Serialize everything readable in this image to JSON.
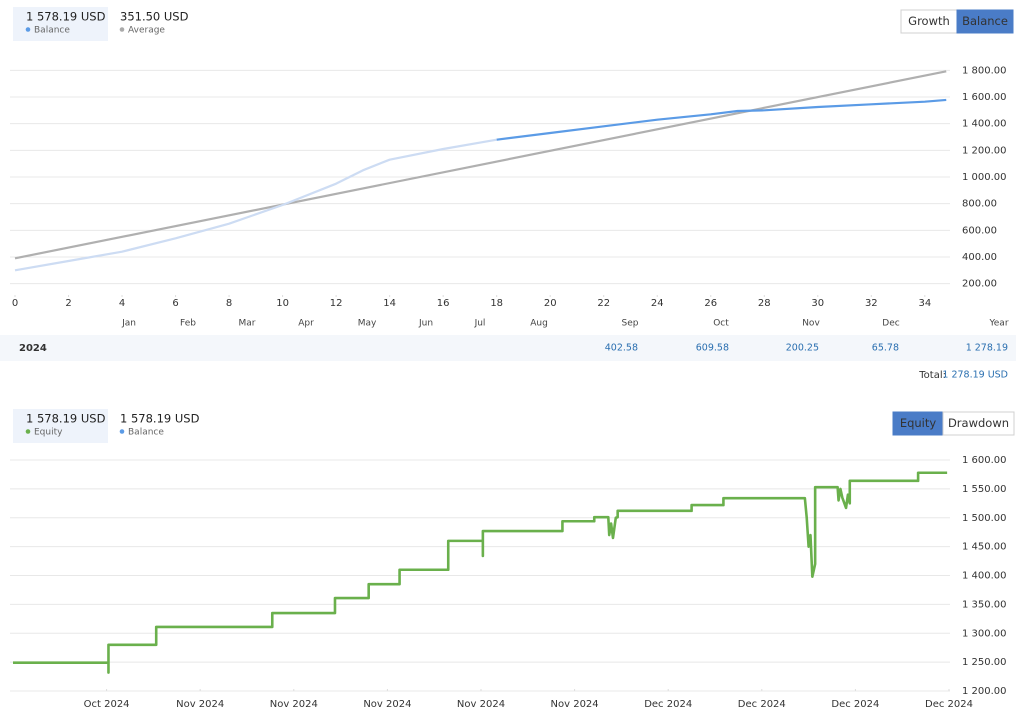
{
  "panels": [
    {
      "stats": [
        {
          "value": "1 578.19 USD",
          "label": "Balance",
          "color": "#5b9be6"
        },
        {
          "value": "351.50 USD",
          "label": "Average",
          "color": "#aaaaaa"
        }
      ],
      "tabs": [
        {
          "label": "Growth",
          "active": false
        },
        {
          "label": "Balance",
          "active": true
        }
      ]
    },
    {
      "stats": [
        {
          "value": "1 578.19 USD",
          "label": "Equity",
          "color": "#6ab04c"
        },
        {
          "value": "1 578.19 USD",
          "label": "Balance",
          "color": "#5b9be6"
        }
      ],
      "tabs": [
        {
          "label": "Equity",
          "active": true
        },
        {
          "label": "Drawdown",
          "active": false
        }
      ]
    }
  ],
  "chart_data": [
    {
      "type": "line",
      "xlim": [
        0,
        35
      ],
      "xticks": [
        0,
        2,
        4,
        6,
        8,
        10,
        12,
        14,
        16,
        18,
        20,
        22,
        24,
        26,
        28,
        30,
        32,
        34
      ],
      "ylim": [
        100,
        1900
      ],
      "yticks": [
        {
          "value": 200,
          "label": "200.00"
        },
        {
          "value": 400,
          "label": "400.00"
        },
        {
          "value": 600,
          "label": "600.00"
        },
        {
          "value": 800,
          "label": "800.00"
        },
        {
          "value": 1000,
          "label": "1 000.00"
        },
        {
          "value": 1200,
          "label": "1 200.00"
        },
        {
          "value": 1400,
          "label": "1 400.00"
        },
        {
          "value": 1600,
          "label": "1 600.00"
        },
        {
          "value": 1800,
          "label": "1 800.00"
        }
      ],
      "grid": true,
      "series": [
        {
          "name": "Average",
          "color": "#b0b0b0",
          "x": [
            0,
            34.8
          ],
          "values": [
            390,
            1793
          ]
        },
        {
          "name": "Balance",
          "color": "#5b9be6",
          "history_color": "#cddcf3",
          "history_until": 18,
          "x": [
            0,
            2,
            4,
            6,
            8,
            10,
            12,
            13,
            14,
            16,
            18,
            20,
            22,
            24,
            26,
            27,
            28,
            30,
            32,
            34,
            34.8
          ],
          "values": [
            300,
            370,
            440,
            540,
            650,
            790,
            950,
            1050,
            1130,
            1210,
            1280,
            1330,
            1380,
            1430,
            1470,
            1495,
            1500,
            1525,
            1545,
            1565,
            1578.19
          ]
        }
      ]
    },
    {
      "type": "line",
      "xlim": [
        0,
        100
      ],
      "xticks": [
        {
          "value": 10,
          "label": "Oct 2024"
        },
        {
          "value": 20,
          "label": "Nov 2024"
        },
        {
          "value": 30,
          "label": "Nov 2024"
        },
        {
          "value": 40,
          "label": "Nov 2024"
        },
        {
          "value": 50,
          "label": "Nov 2024"
        },
        {
          "value": 60,
          "label": "Nov 2024"
        },
        {
          "value": 70,
          "label": "Dec 2024"
        },
        {
          "value": 80,
          "label": "Dec 2024"
        },
        {
          "value": 90,
          "label": "Dec 2024"
        },
        {
          "value": 100,
          "label": "Dec 2024"
        }
      ],
      "ylim": [
        1200,
        1625
      ],
      "yticks": [
        {
          "value": 1200,
          "label": "1 200.00"
        },
        {
          "value": 1250,
          "label": "1 250.00"
        },
        {
          "value": 1300,
          "label": "1 300.00"
        },
        {
          "value": 1350,
          "label": "1 350.00"
        },
        {
          "value": 1400,
          "label": "1 400.00"
        },
        {
          "value": 1450,
          "label": "1 450.00"
        },
        {
          "value": 1500,
          "label": "1 500.00"
        },
        {
          "value": 1550,
          "label": "1 550.00"
        },
        {
          "value": 1600,
          "label": "1 600.00"
        }
      ],
      "grid": true,
      "series": [
        {
          "name": "Equity",
          "color": "#6ab04c",
          "x": [
            0,
            10.2,
            10.2,
            10.2,
            15.3,
            15.3,
            27.7,
            27.7,
            34.4,
            34.4,
            38,
            38,
            41.3,
            41.3,
            46.5,
            46.5,
            50.2,
            50.2,
            50.2,
            58.7,
            58.7,
            62.1,
            62.1,
            63.6,
            63.7,
            63.9,
            64.1,
            64.4,
            64.6,
            64.6,
            72.5,
            72.5,
            75.9,
            75.9,
            84.6,
            84.8,
            85.0,
            85.2,
            85.4,
            85.7,
            85.7,
            88.1,
            88.2,
            88.4,
            88.6,
            89.0,
            89.2,
            89.4,
            89.4,
            96.7,
            96.7,
            99.8
          ],
          "values": [
            1249,
            1249,
            1232,
            1280,
            1280,
            1311,
            1311,
            1335,
            1335,
            1361,
            1361,
            1385,
            1385,
            1410,
            1410,
            1460,
            1460,
            1434,
            1477,
            1477,
            1494,
            1494,
            1501,
            1501,
            1470,
            1490,
            1465,
            1500,
            1501,
            1512,
            1512,
            1522,
            1522,
            1534,
            1534,
            1500,
            1450,
            1470,
            1398,
            1420,
            1553,
            1553,
            1530,
            1550,
            1535,
            1517,
            1540,
            1525,
            1564,
            1564,
            1578,
            1578
          ]
        }
      ]
    }
  ],
  "returns_table": {
    "columns": [
      "Jan",
      "Feb",
      "Mar",
      "Apr",
      "May",
      "Jun",
      "Jul",
      "Aug",
      "Sep",
      "Oct",
      "Nov",
      "Dec",
      "Year"
    ],
    "rows": [
      {
        "year": "2024",
        "cells": [
          null,
          null,
          null,
          null,
          null,
          null,
          null,
          null,
          "402.58",
          "609.58",
          "200.25",
          "65.78",
          "1 278.19"
        ]
      }
    ],
    "total_label": "Total:",
    "total": "1 278.19 USD"
  }
}
